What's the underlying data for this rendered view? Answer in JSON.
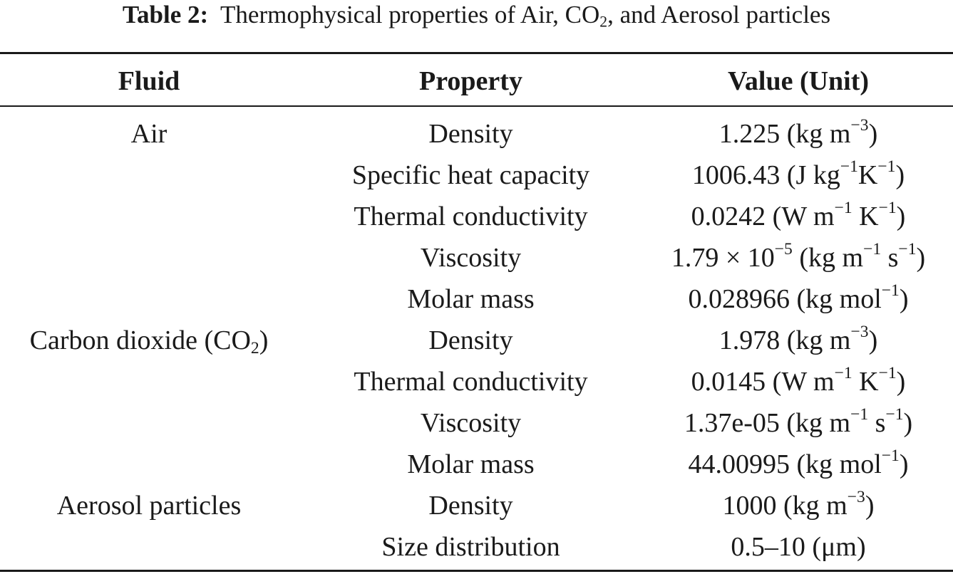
{
  "caption": {
    "label": "Table 2:",
    "text": "Thermophysical properties of Air, CO₂, and Aerosol particles"
  },
  "headers": [
    "Fluid",
    "Property",
    "Value (Unit)"
  ],
  "rows": [
    {
      "fluid": "Air",
      "property": "Density",
      "value": "1.225 (kg m⁻³)"
    },
    {
      "fluid": "",
      "property": "Specific heat capacity",
      "value": "1006.43 (J kg⁻¹K⁻¹)"
    },
    {
      "fluid": "",
      "property": "Thermal conductivity",
      "value": "0.0242 (W m⁻¹ K⁻¹)"
    },
    {
      "fluid": "",
      "property": "Viscosity",
      "value": "1.79 × 10⁻⁵ (kg m⁻¹ s⁻¹)"
    },
    {
      "fluid": "",
      "property": "Molar mass",
      "value": "0.028966 (kg mol⁻¹)"
    },
    {
      "fluid": "Carbon dioxide (CO₂)",
      "property": "Density",
      "value": "1.978 (kg m⁻³)"
    },
    {
      "fluid": "",
      "property": "Thermal conductivity",
      "value": "0.0145 (W m⁻¹ K⁻¹)"
    },
    {
      "fluid": "",
      "property": "Viscosity",
      "value": "1.37e-05 (kg m⁻¹ s⁻¹)"
    },
    {
      "fluid": "",
      "property": "Molar mass",
      "value": "44.00995 (kg mol⁻¹)"
    },
    {
      "fluid": "Aerosol particles",
      "property": "Density",
      "value": "1000 (kg m⁻³)"
    },
    {
      "fluid": "",
      "property": "Size distribution",
      "value": "0.5–10 (μm)"
    }
  ]
}
